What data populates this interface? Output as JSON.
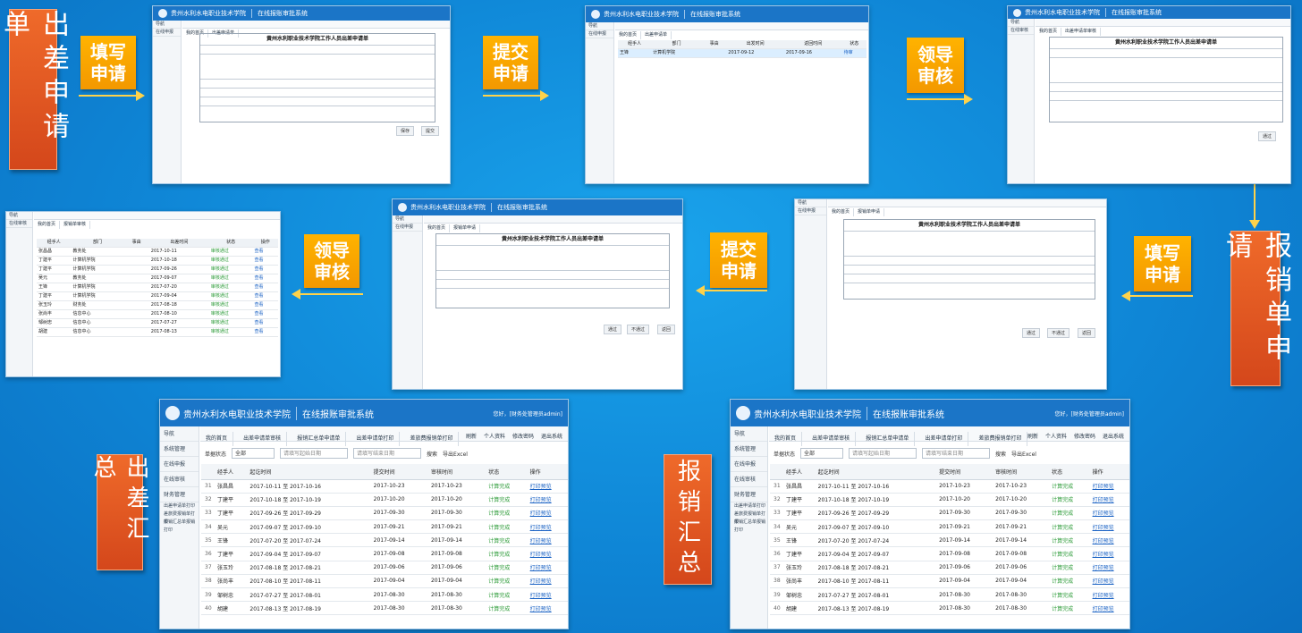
{
  "steps": {
    "travel_form": "出差申请单",
    "reimburse_form": "报销单申请",
    "travel_summary": "出差汇总",
    "reimburse_summary": "报销汇总",
    "fill1_a": "填写",
    "fill1_b": "申请",
    "submit1_a": "提交",
    "submit1_b": "申请",
    "review1_a": "领导",
    "review1_b": "审核",
    "fill2_a": "填写",
    "fill2_b": "申请",
    "submit2_a": "提交",
    "submit2_b": "申请",
    "review2_a": "领导",
    "review2_b": "审核"
  },
  "system": {
    "school": "贵州水利水电职业技术学院",
    "name": "在线报账审批系统",
    "user": "您好，[财务处管理员admin]"
  },
  "form": {
    "title": "黄州水利职业技术学院工作人员出差申请单"
  },
  "summary": {
    "tabs_travel": [
      "我的首页",
      "出差申请单审核",
      "报销汇总单申请单",
      "出差申请单打印",
      "差旅费报销单打印"
    ],
    "tabs_reimb": [
      "我的首页",
      "出差申请单审核",
      "报销汇总单申请单",
      "出差申请单打印",
      "差旅费报销单打印"
    ],
    "side": [
      "导航",
      "系统管理",
      "在线申报",
      "在线审核",
      "财务管理"
    ],
    "side_sub": [
      "出差申请单打印",
      "差旅费报销单打印",
      "报销汇总单报销打印"
    ],
    "toolbar": {
      "status_label": "单据状态",
      "status_value": "全部",
      "date_from": "请填写起始日期",
      "date_to": "请填写结束日期",
      "search": "搜索",
      "export": "导出Excel"
    },
    "actions": [
      "刷新",
      "个人资料",
      "修改密码",
      "退出系统"
    ],
    "columns": [
      "经手人",
      "起讫时间",
      "提交时间",
      "审核时间",
      "状态",
      "操作"
    ],
    "rows": [
      {
        "n": "31",
        "name": "张昌昌",
        "range": "2017-10-11 至 2017-10-16",
        "submit": "2017-10-23",
        "audit": "2017-10-23",
        "status": "计算完成",
        "op": "打印预览"
      },
      {
        "n": "32",
        "name": "丁建平",
        "range": "2017-10-18 至 2017-10-19",
        "submit": "2017-10-20",
        "audit": "2017-10-20",
        "status": "计算完成",
        "op": "打印预览"
      },
      {
        "n": "33",
        "name": "丁建平",
        "range": "2017-09-26 至 2017-09-29",
        "submit": "2017-09-30",
        "audit": "2017-09-30",
        "status": "计算完成",
        "op": "打印预览"
      },
      {
        "n": "34",
        "name": "吴元",
        "range": "2017-09-07 至 2017-09-10",
        "submit": "2017-09-21",
        "audit": "2017-09-21",
        "status": "计算完成",
        "op": "打印预览"
      },
      {
        "n": "35",
        "name": "王锋",
        "range": "2017-07-20 至 2017-07-24",
        "submit": "2017-09-14",
        "audit": "2017-09-14",
        "status": "计算完成",
        "op": "打印预览"
      },
      {
        "n": "36",
        "name": "丁建平",
        "range": "2017-09-04 至 2017-09-07",
        "submit": "2017-09-08",
        "audit": "2017-09-08",
        "status": "计算完成",
        "op": "打印预览"
      },
      {
        "n": "37",
        "name": "张玉玲",
        "range": "2017-08-18 至 2017-08-21",
        "submit": "2017-09-06",
        "audit": "2017-09-06",
        "status": "计算完成",
        "op": "打印预览"
      },
      {
        "n": "38",
        "name": "张尚丰",
        "range": "2017-08-10 至 2017-08-11",
        "submit": "2017-09-04",
        "audit": "2017-09-04",
        "status": "计算完成",
        "op": "打印预览"
      },
      {
        "n": "39",
        "name": "邹树忠",
        "range": "2017-07-27 至 2017-08-01",
        "submit": "2017-08-30",
        "audit": "2017-08-30",
        "status": "计算完成",
        "op": "打印预览"
      },
      {
        "n": "40",
        "name": "胡建",
        "range": "2017-08-13 至 2017-08-19",
        "submit": "2017-08-30",
        "audit": "2017-08-30",
        "status": "计算完成",
        "op": "打印预览"
      }
    ]
  }
}
